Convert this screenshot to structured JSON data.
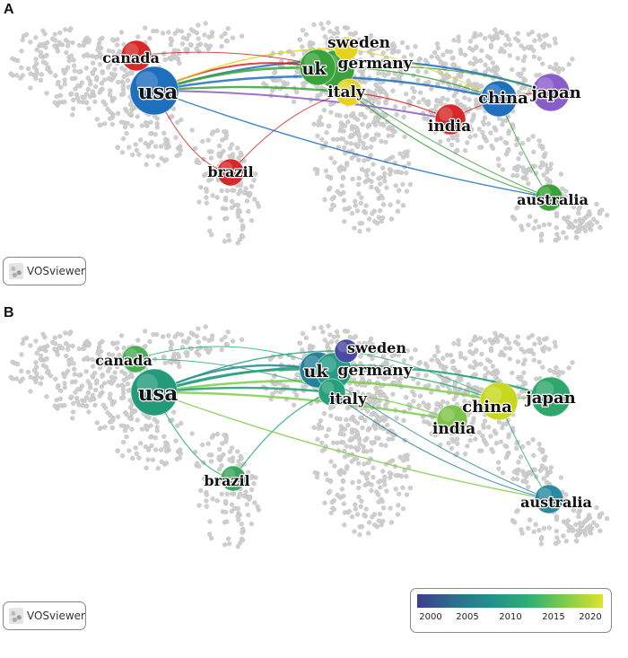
{
  "panels": [
    {
      "label": "A",
      "badge": "VOSviewer",
      "nodes": [
        {
          "id": "canada",
          "label": "canada",
          "color": "#d62828"
        },
        {
          "id": "usa",
          "label": "usa",
          "color": "#1f6fbf"
        },
        {
          "id": "brazil",
          "label": "brazil",
          "color": "#d62828"
        },
        {
          "id": "uk",
          "label": "uk",
          "color": "#3aa23a"
        },
        {
          "id": "germany",
          "label": "germany",
          "color": "#3aa23a"
        },
        {
          "id": "sweden",
          "label": "sweden",
          "color": "#e6d21e"
        },
        {
          "id": "italy",
          "label": "italy",
          "color": "#e6d21e"
        },
        {
          "id": "india",
          "label": "india",
          "color": "#d62828"
        },
        {
          "id": "china",
          "label": "china",
          "color": "#1f6fbf"
        },
        {
          "id": "japan",
          "label": "japan",
          "color": "#8a5cc8"
        },
        {
          "id": "australia",
          "label": "australia",
          "color": "#3aa23a"
        }
      ]
    },
    {
      "label": "B",
      "badge": "VOSviewer",
      "nodes": [
        {
          "id": "canada",
          "label": "canada",
          "color": "#49ad55"
        },
        {
          "id": "usa",
          "label": "usa",
          "color": "#239b7a"
        },
        {
          "id": "brazil",
          "label": "brazil",
          "color": "#3aa75c"
        },
        {
          "id": "uk",
          "label": "uk",
          "color": "#26829a"
        },
        {
          "id": "germany",
          "label": "germany",
          "color": "#239b83"
        },
        {
          "id": "sweden",
          "label": "sweden",
          "color": "#4a4aa3"
        },
        {
          "id": "italy",
          "label": "italy",
          "color": "#27a17a"
        },
        {
          "id": "india",
          "label": "india",
          "color": "#7ec34b"
        },
        {
          "id": "china",
          "label": "china",
          "color": "#c7d81e"
        },
        {
          "id": "japan",
          "label": "japan",
          "color": "#2fa76c"
        },
        {
          "id": "australia",
          "label": "australia",
          "color": "#2c8aa0"
        }
      ]
    }
  ],
  "color_scale": {
    "ticks": [
      "2000",
      "2005",
      "2010",
      "2015",
      "2020"
    ],
    "colors": [
      "#3b3f8c",
      "#2f6d8e",
      "#22908b",
      "#2fae77",
      "#7fcd4a",
      "#e0e22a"
    ]
  },
  "edge_colors": {
    "panel_a": [
      "#1f6fbf",
      "#3aa23a",
      "#d62828",
      "#e6d21e",
      "#8a5cc8"
    ],
    "panel_b": [
      "#2fae77",
      "#239b7a",
      "#7fcd4a",
      "#26829a"
    ]
  }
}
